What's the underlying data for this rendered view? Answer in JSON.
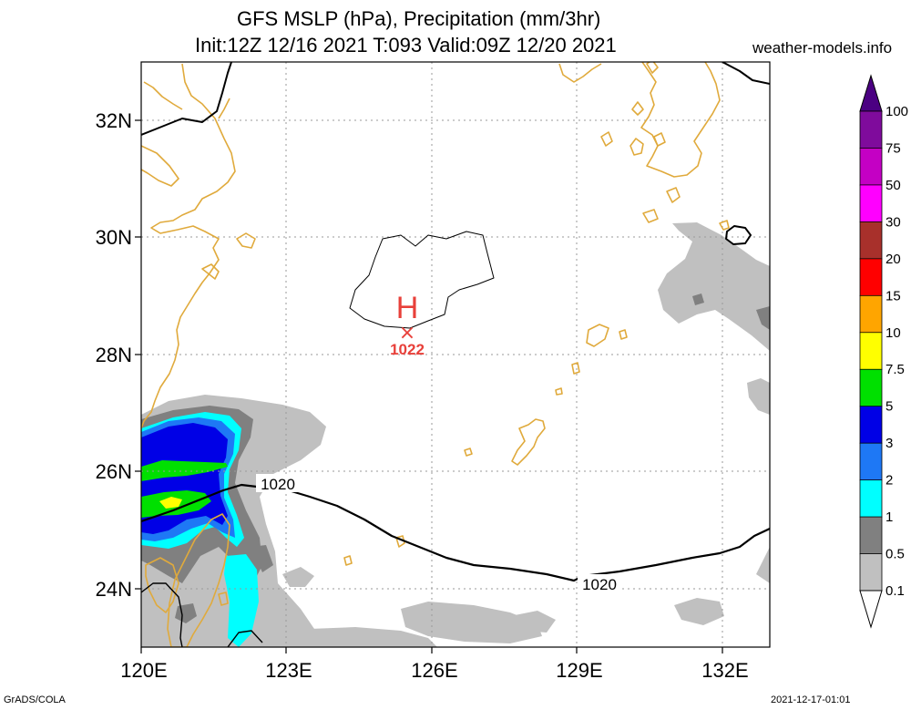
{
  "title_line1": "GFS MSLP (hPa), Precipitation (mm/3hr)",
  "title_line2": "Init:12Z 12/16 2021 T:093 Valid:09Z 12/20 2021",
  "site": "weather-models.info",
  "footer_left": "GrADS/COLA",
  "footer_right": "2021-12-17-01:01",
  "map": {
    "lat_labels": [
      "32N",
      "30N",
      "28N",
      "26N",
      "24N"
    ],
    "lon_labels": [
      "120E",
      "123E",
      "126E",
      "129E",
      "132E"
    ],
    "high_center": {
      "symbol": "H",
      "marker": "×",
      "pressure": "1022"
    },
    "isobar_labels": [
      "1020",
      "1020"
    ],
    "colors": {
      "coast": "#e0aa3c",
      "isobar": "#000000",
      "high": "#e8403a",
      "grid": "#9a9a9a"
    }
  },
  "colorbar": {
    "labels": [
      "100",
      "75",
      "50",
      "30",
      "20",
      "15",
      "10",
      "7.5",
      "5",
      "3",
      "2",
      "1",
      "0.5",
      "0.1"
    ],
    "colors": [
      "#7f0b9c",
      "#c400c4",
      "#ff00ff",
      "#a8302b",
      "#ff0000",
      "#ffa500",
      "#ffff00",
      "#00e000",
      "#0000e6",
      "#1e78f5",
      "#00ffff",
      "#808080",
      "#c0c0c0"
    ],
    "top_arrow_color": "#4b0082"
  }
}
